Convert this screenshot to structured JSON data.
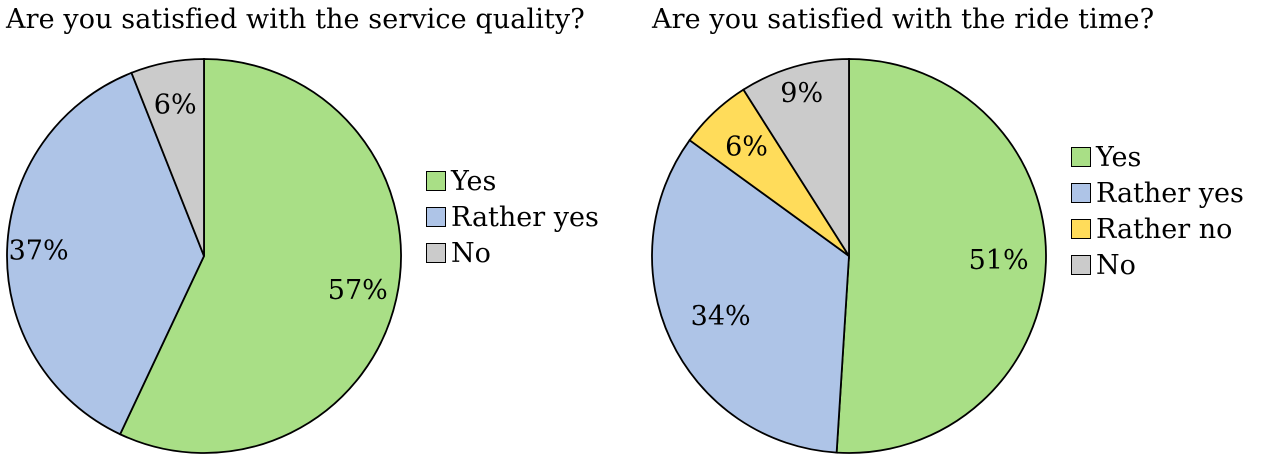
{
  "colors": {
    "yes": "#a9df86",
    "rather_yes": "#aec4e7",
    "rather_no": "#ffdc5a",
    "no": "#cbcbcb"
  },
  "chart_data": [
    {
      "type": "pie",
      "title": "Are you satisfied with the service quality?",
      "categories": [
        "Yes",
        "Rather yes",
        "No"
      ],
      "values": [
        57,
        37,
        6
      ],
      "labels": [
        "57%",
        "37%",
        "6%"
      ],
      "colors": [
        "#a9df86",
        "#aec4e7",
        "#cbcbcb"
      ],
      "start": "top",
      "direction": "clockwise",
      "legend": "right"
    },
    {
      "type": "pie",
      "title": "Are you satisfied with the ride time?",
      "categories": [
        "Yes",
        "Rather yes",
        "Rather no",
        "No"
      ],
      "values": [
        51,
        34,
        6,
        9
      ],
      "labels": [
        "51%",
        "34%",
        "6%",
        "9%"
      ],
      "colors": [
        "#a9df86",
        "#aec4e7",
        "#ffdc5a",
        "#cbcbcb"
      ],
      "start": "top",
      "direction": "clockwise",
      "legend": "right"
    }
  ]
}
